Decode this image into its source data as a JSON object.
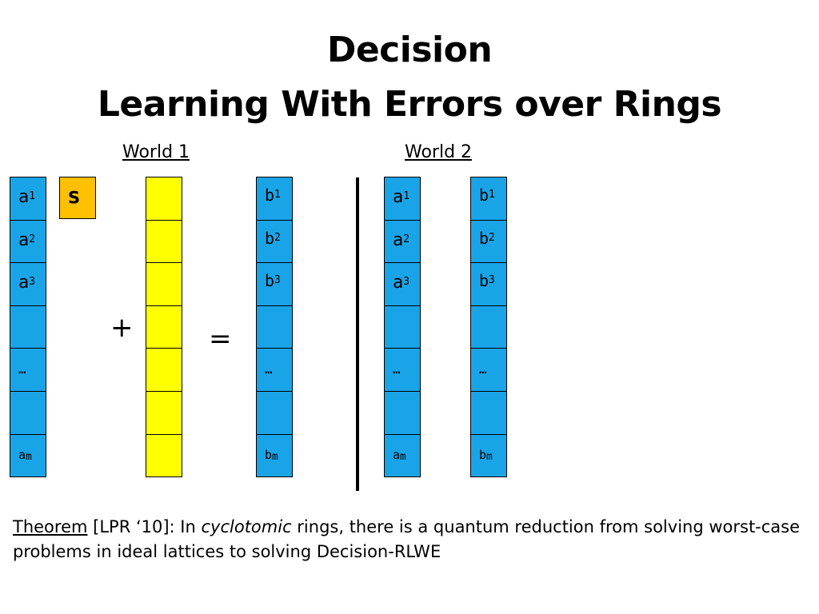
{
  "title": {
    "line1": "Decision",
    "line2": "Learning With Errors over Rings"
  },
  "worlds": {
    "world1": "World 1",
    "world2": "World 2"
  },
  "secret": "s",
  "operators": {
    "plus": "+",
    "equals": "="
  },
  "a_column": [
    {
      "base": "a",
      "sub": "1"
    },
    {
      "base": "a",
      "sub": "2"
    },
    {
      "base": "a",
      "sub": "3"
    },
    {
      "base": "",
      "sub": ""
    },
    {
      "base": "…",
      "sub": ""
    },
    {
      "base": "",
      "sub": ""
    },
    {
      "base": "a",
      "sub": "m"
    }
  ],
  "b_column": [
    {
      "base": "b",
      "sub": "1"
    },
    {
      "base": "b",
      "sub": "2"
    },
    {
      "base": "b",
      "sub": "3"
    },
    {
      "base": "",
      "sub": ""
    },
    {
      "base": "…",
      "sub": ""
    },
    {
      "base": "",
      "sub": ""
    },
    {
      "base": "b",
      "sub": "m"
    }
  ],
  "error_column_cells": 7,
  "colors": {
    "vector": "#1aa4e8",
    "error": "#ffff00",
    "secret": "#ffc000"
  },
  "theorem": {
    "label": "Theorem",
    "text1": " [LPR ‘10]: In ",
    "emphasis": "cyclotomic",
    "text2": " rings, there is a quantum reduction from solving worst-case problems in ideal lattices to solving  Decision-RLWE"
  }
}
